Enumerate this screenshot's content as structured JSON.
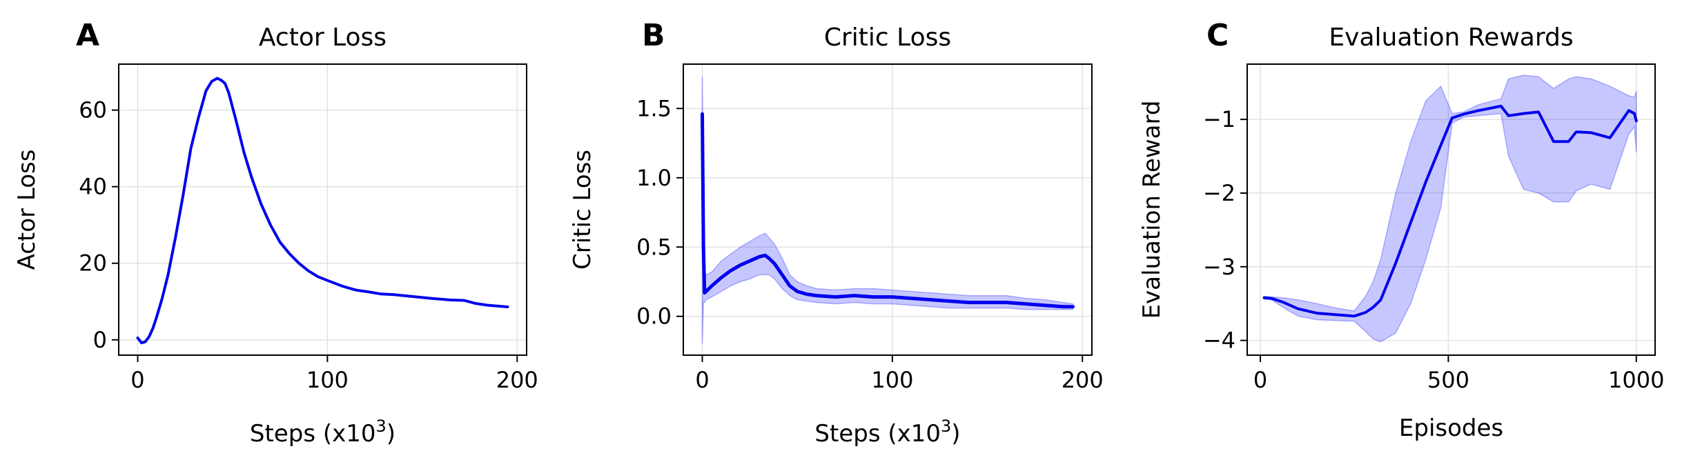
{
  "colors": {
    "line": "#0000ee",
    "band": "#0000ff",
    "grid": "#e3e3e3",
    "axis": "#000000"
  },
  "chart_data": [
    {
      "type": "line",
      "panel_label": "A",
      "title": "Actor Loss",
      "xlabel": "Steps (x10",
      "xlabel_sup": "3",
      "xlabel_suffix": ")",
      "ylabel": "Actor Loss",
      "xlim": [
        -10,
        205
      ],
      "ylim": [
        -4,
        72
      ],
      "xticks": [
        0,
        100,
        200
      ],
      "yticks": [
        0,
        20,
        40,
        60
      ],
      "grid": true,
      "series": [
        {
          "x": [
            0,
            2,
            4,
            6,
            8,
            10,
            13,
            16,
            20,
            24,
            28,
            32,
            36,
            39,
            42,
            44,
            46,
            48,
            52,
            56,
            60,
            65,
            70,
            75,
            80,
            85,
            90,
            95,
            100,
            108,
            115,
            122,
            128,
            135,
            145,
            155,
            165,
            172,
            178,
            185,
            195
          ],
          "y": [
            0.5,
            -0.8,
            -0.5,
            0.8,
            3,
            6,
            11,
            17,
            27,
            38,
            50,
            58,
            65,
            67.5,
            68.3,
            67.8,
            67,
            64.5,
            57,
            49,
            42.5,
            35.5,
            30,
            25.5,
            22.5,
            20,
            18,
            16.5,
            15.5,
            14,
            13,
            12.5,
            12,
            11.8,
            11.3,
            10.8,
            10.4,
            10.3,
            9.5,
            9,
            8.6
          ]
        }
      ]
    },
    {
      "type": "line",
      "panel_label": "B",
      "title": "Critic Loss",
      "xlabel": "Steps (x10",
      "xlabel_sup": "3",
      "xlabel_suffix": ")",
      "ylabel": "Critic Loss",
      "xlim": [
        -10,
        205
      ],
      "ylim": [
        -0.28,
        1.82
      ],
      "xticks": [
        0,
        100,
        200
      ],
      "yticks": [
        0.0,
        0.5,
        1.0,
        1.5
      ],
      "ytick_labels": [
        "0.0",
        "0.5",
        "1.0",
        "1.5"
      ],
      "grid": true,
      "series": [
        {
          "x": [
            0,
            0.6,
            1.2,
            2,
            5,
            10,
            15,
            20,
            25,
            30,
            33,
            35,
            38,
            42,
            46,
            50,
            55,
            60,
            70,
            80,
            90,
            100,
            110,
            120,
            130,
            140,
            150,
            160,
            170,
            180,
            190,
            195
          ],
          "y": [
            1.46,
            0.5,
            0.17,
            0.18,
            0.22,
            0.28,
            0.33,
            0.37,
            0.4,
            0.43,
            0.44,
            0.42,
            0.38,
            0.3,
            0.22,
            0.18,
            0.16,
            0.15,
            0.14,
            0.15,
            0.14,
            0.14,
            0.13,
            0.12,
            0.11,
            0.1,
            0.1,
            0.1,
            0.09,
            0.08,
            0.07,
            0.07
          ],
          "lower": [
            -0.2,
            0.1,
            0.1,
            0.12,
            0.14,
            0.18,
            0.22,
            0.25,
            0.27,
            0.3,
            0.3,
            0.3,
            0.27,
            0.2,
            0.15,
            0.12,
            0.11,
            0.1,
            0.09,
            0.1,
            0.09,
            0.09,
            0.08,
            0.07,
            0.06,
            0.06,
            0.06,
            0.06,
            0.05,
            0.05,
            0.05,
            0.05
          ],
          "upper": [
            1.73,
            0.9,
            0.3,
            0.3,
            0.32,
            0.4,
            0.45,
            0.5,
            0.54,
            0.58,
            0.6,
            0.57,
            0.52,
            0.42,
            0.3,
            0.25,
            0.22,
            0.2,
            0.19,
            0.2,
            0.2,
            0.19,
            0.18,
            0.17,
            0.16,
            0.15,
            0.15,
            0.15,
            0.13,
            0.12,
            0.1,
            0.09
          ]
        }
      ]
    },
    {
      "type": "line",
      "panel_label": "C",
      "title": "Evaluation Rewards",
      "xlabel": "Episodes",
      "ylabel": "Evaluation Reward",
      "xlim": [
        -35,
        1050
      ],
      "ylim": [
        -4.2,
        -0.25
      ],
      "xticks": [
        0,
        500,
        1000
      ],
      "yticks": [
        -4,
        -3,
        -2,
        -1
      ],
      "ytick_labels": [
        "−4",
        "−3",
        "−2",
        "−1"
      ],
      "grid": true,
      "series": [
        {
          "x": [
            10,
            30,
            60,
            100,
            150,
            200,
            250,
            280,
            300,
            320,
            360,
            400,
            440,
            480,
            510,
            540,
            580,
            640,
            660,
            700,
            740,
            780,
            820,
            840,
            880,
            930,
            980,
            995,
            1000
          ],
          "y": [
            -3.42,
            -3.43,
            -3.48,
            -3.57,
            -3.63,
            -3.65,
            -3.67,
            -3.62,
            -3.55,
            -3.45,
            -2.95,
            -2.4,
            -1.85,
            -1.35,
            -0.98,
            -0.93,
            -0.88,
            -0.82,
            -0.95,
            -0.92,
            -0.9,
            -1.3,
            -1.3,
            -1.17,
            -1.18,
            -1.25,
            -0.88,
            -0.92,
            -1.02
          ],
          "lower": [
            -3.44,
            -3.45,
            -3.55,
            -3.67,
            -3.72,
            -3.73,
            -3.74,
            -3.88,
            -3.98,
            -4.02,
            -3.9,
            -3.5,
            -2.9,
            -2.2,
            -1.05,
            -0.97,
            -0.95,
            -0.92,
            -1.5,
            -1.95,
            -2.0,
            -2.12,
            -2.12,
            -1.97,
            -1.88,
            -1.95,
            -1.2,
            -1.1,
            -1.45
          ],
          "upper": [
            -3.4,
            -3.41,
            -3.42,
            -3.45,
            -3.5,
            -3.56,
            -3.6,
            -3.4,
            -3.2,
            -2.9,
            -2.0,
            -1.3,
            -0.75,
            -0.55,
            -0.92,
            -0.9,
            -0.8,
            -0.72,
            -0.45,
            -0.4,
            -0.42,
            -0.58,
            -0.45,
            -0.42,
            -0.45,
            -0.55,
            -0.68,
            -0.7,
            -0.62
          ]
        }
      ]
    }
  ]
}
